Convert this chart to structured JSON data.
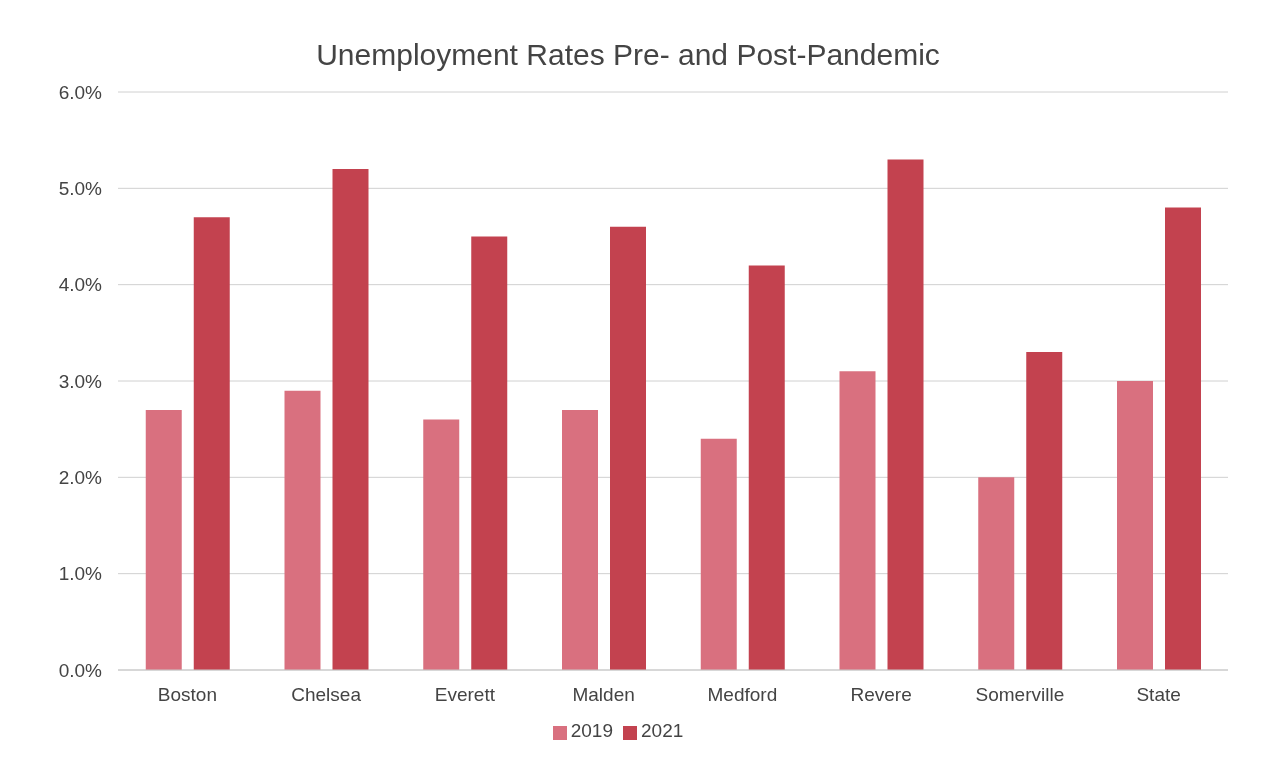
{
  "chart_data": {
    "type": "bar",
    "title": "Unemployment Rates Pre- and Post-Pandemic",
    "categories": [
      "Boston",
      "Chelsea",
      "Everett",
      "Malden",
      "Medford",
      "Revere",
      "Somerville",
      "State"
    ],
    "series": [
      {
        "name": "2019",
        "color": "#d9707f",
        "values": [
          2.7,
          2.9,
          2.6,
          2.7,
          2.4,
          3.1,
          2.0,
          3.0
        ]
      },
      {
        "name": "2021",
        "color": "#c3424f",
        "values": [
          4.7,
          5.2,
          4.5,
          4.6,
          4.2,
          5.3,
          3.3,
          4.8
        ]
      }
    ],
    "ylim": [
      0,
      6
    ],
    "yticks": [
      {
        "value": 0,
        "label": "0.0%"
      },
      {
        "value": 1,
        "label": "1.0%"
      },
      {
        "value": 2,
        "label": "2.0%"
      },
      {
        "value": 3,
        "label": "3.0%"
      },
      {
        "value": 4,
        "label": "4.0%"
      },
      {
        "value": 5,
        "label": "5.0%"
      },
      {
        "value": 6,
        "label": "6.0%"
      }
    ],
    "grid": "y",
    "legend": "bottom"
  }
}
